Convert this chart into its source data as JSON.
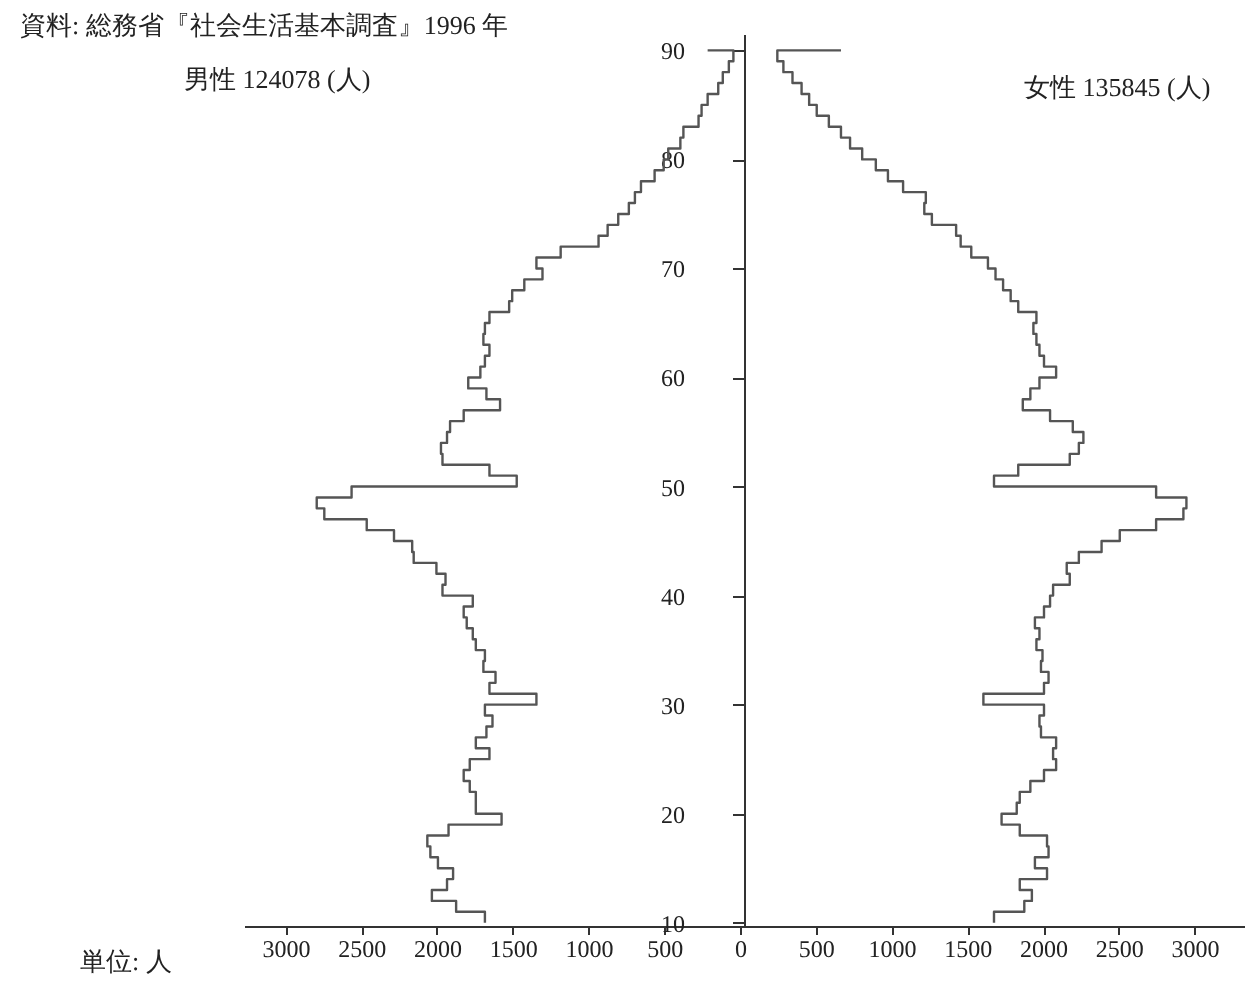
{
  "chart_data": {
    "type": "step",
    "orientation": "horizontal",
    "annotations": [
      "資料: 総務省『社会生活基本調査』1996 年",
      "男性 124078 (人)",
      "女性 135845 (人)",
      "単位: 人"
    ],
    "x": [
      10,
      11,
      12,
      13,
      14,
      15,
      16,
      17,
      18,
      19,
      20,
      21,
      22,
      23,
      24,
      25,
      26,
      27,
      28,
      29,
      30,
      31,
      32,
      33,
      34,
      35,
      36,
      37,
      38,
      39,
      40,
      41,
      42,
      43,
      44,
      45,
      46,
      47,
      48,
      49,
      50,
      51,
      52,
      53,
      54,
      55,
      56,
      57,
      58,
      59,
      60,
      61,
      62,
      63,
      64,
      65,
      66,
      67,
      68,
      69,
      70,
      71,
      72,
      73,
      74,
      75,
      76,
      77,
      78,
      79,
      80,
      81,
      82,
      83,
      84,
      85,
      86,
      87,
      88,
      89,
      90
    ],
    "series": [
      {
        "color": "#555555",
        "values": [
          -1710,
          -1900,
          -2060,
          -1960,
          -1920,
          -2020,
          -2070,
          -2090,
          -1950,
          -1600,
          -1770,
          -1770,
          -1810,
          -1850,
          -1810,
          -1680,
          -1770,
          -1700,
          -1660,
          -1710,
          -1370,
          -1680,
          -1640,
          -1720,
          -1710,
          -1770,
          -1790,
          -1830,
          -1850,
          -1790,
          -1990,
          -1970,
          -2030,
          -2180,
          -2190,
          -2310,
          -2490,
          -2770,
          -2820,
          -2590,
          -1500,
          -1680,
          -1990,
          -2000,
          -1960,
          -1940,
          -1850,
          -1610,
          -1700,
          -1820,
          -1740,
          -1710,
          -1680,
          -1720,
          -1710,
          -1680,
          -1550,
          -1530,
          -1450,
          -1330,
          -1370,
          -1210,
          -960,
          -900,
          -830,
          -760,
          -720,
          -680,
          -590,
          -530,
          -500,
          -420,
          -400,
          -300,
          -280,
          -240,
          -170,
          -140,
          -100,
          -70,
          -240
        ]
      },
      {
        "color": "#555555",
        "values": [
          1650,
          1850,
          1900,
          1820,
          2000,
          1920,
          2010,
          2000,
          1820,
          1700,
          1800,
          1820,
          1890,
          1980,
          2060,
          2040,
          2060,
          1960,
          1950,
          1980,
          1580,
          1980,
          2010,
          1960,
          1970,
          1930,
          1950,
          1920,
          1980,
          2020,
          2040,
          2150,
          2130,
          2210,
          2360,
          2480,
          2720,
          2900,
          2920,
          2720,
          1650,
          1810,
          2150,
          2210,
          2240,
          2170,
          2020,
          1840,
          1890,
          1950,
          2060,
          1980,
          1950,
          1930,
          1910,
          1930,
          1810,
          1760,
          1710,
          1660,
          1610,
          1500,
          1430,
          1400,
          1240,
          1190,
          1200,
          1050,
          950,
          870,
          780,
          700,
          640,
          560,
          480,
          430,
          380,
          320,
          260,
          220,
          640
        ]
      }
    ],
    "xlim": [
      -3300,
      3300
    ],
    "xticks": [
      {
        "value": -3000,
        "label": "3000"
      },
      {
        "value": -2500,
        "label": "2500"
      },
      {
        "value": -2000,
        "label": "2000"
      },
      {
        "value": -1500,
        "label": "1500"
      },
      {
        "value": -1000,
        "label": "1000"
      },
      {
        "value": -500,
        "label": "500"
      },
      0,
      500,
      1000,
      1500,
      2000,
      2500,
      3000
    ],
    "ylim": [
      9.7,
      91.5
    ],
    "yticks": [
      10,
      20,
      30,
      40,
      50,
      60,
      70,
      80,
      90
    ],
    "grid": false
  }
}
